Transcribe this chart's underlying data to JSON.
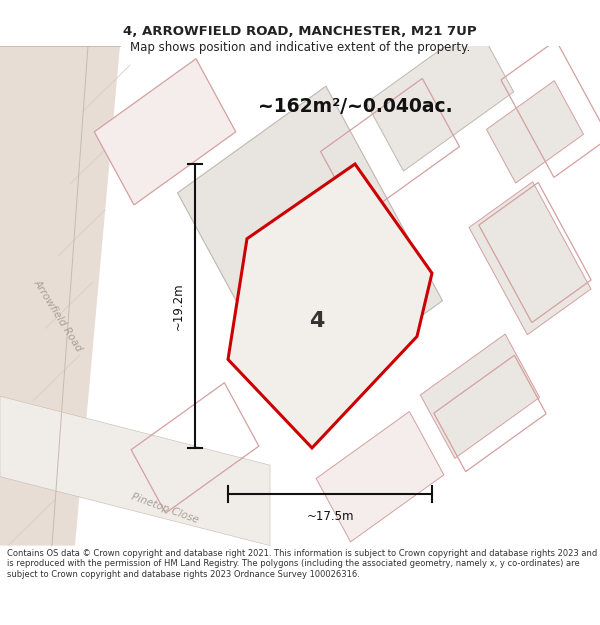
{
  "title_line1": "4, ARROWFIELD ROAD, MANCHESTER, M21 7UP",
  "title_line2": "Map shows position and indicative extent of the property.",
  "area_text": "~162m²/~0.040ac.",
  "width_label": "~17.5m",
  "height_label": "~19.2m",
  "plot_number": "4",
  "copyright_text": "Contains OS data © Crown copyright and database right 2021. This information is subject to Crown copyright and database rights 2023 and is reproduced with the permission of HM Land Registry. The polygons (including the associated geometry, namely x, y co-ordinates) are subject to Crown copyright and database rights 2023 Ordnance Survey 100026316.",
  "map_bg": "#f7f4f1",
  "road_fill": "#e8ddd4",
  "road_edge": "#c8bab0",
  "bldg_fill": "#eae6e2",
  "bldg_edge": "#c0b8b0",
  "nearby_fill": "#f5ecec",
  "nearby_edge": "#d4a0a0",
  "prop_fill": "#f0ece8",
  "prop_edge": "#cc0000",
  "dim_color": "#111111",
  "road_lbl": "#aaa098",
  "text_color": "#222222",
  "copyright_color": "#333333"
}
